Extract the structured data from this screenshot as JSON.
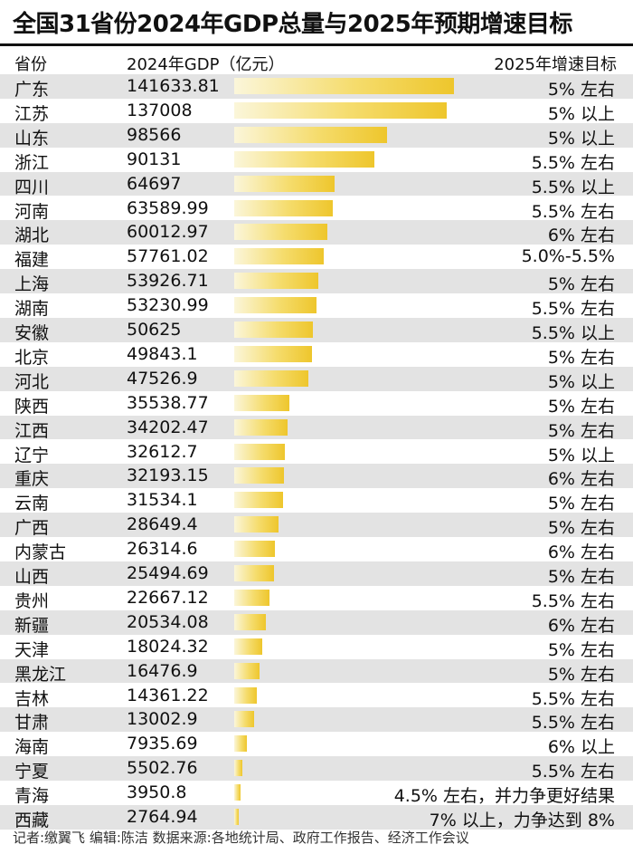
{
  "chart_data": {
    "type": "table",
    "title": "全国31省份2024年GDP总量与2025年预期增速目标",
    "columns": [
      "省份",
      "2024年GDP（亿元）",
      "2025年增速目标"
    ],
    "max_value": 141633.81,
    "rows": [
      {
        "province": "广东",
        "gdp": "141633.81",
        "value": 141633.81,
        "target": "5% 左右"
      },
      {
        "province": "江苏",
        "gdp": "137008",
        "value": 137008,
        "target": "5% 以上"
      },
      {
        "province": "山东",
        "gdp": "98566",
        "value": 98566,
        "target": "5% 以上"
      },
      {
        "province": "浙江",
        "gdp": "90131",
        "value": 90131,
        "target": "5.5% 左右"
      },
      {
        "province": "四川",
        "gdp": "64697",
        "value": 64697,
        "target": "5.5% 以上"
      },
      {
        "province": "河南",
        "gdp": "63589.99",
        "value": 63589.99,
        "target": "5.5% 左右"
      },
      {
        "province": "湖北",
        "gdp": "60012.97",
        "value": 60012.97,
        "target": "6% 左右"
      },
      {
        "province": "福建",
        "gdp": "57761.02",
        "value": 57761.02,
        "target": "5.0%-5.5%"
      },
      {
        "province": "上海",
        "gdp": "53926.71",
        "value": 53926.71,
        "target": "5% 左右"
      },
      {
        "province": "湖南",
        "gdp": "53230.99",
        "value": 53230.99,
        "target": "5.5% 左右"
      },
      {
        "province": "安徽",
        "gdp": "50625",
        "value": 50625,
        "target": "5.5% 以上"
      },
      {
        "province": "北京",
        "gdp": "49843.1",
        "value": 49843.1,
        "target": "5% 左右"
      },
      {
        "province": "河北",
        "gdp": "47526.9",
        "value": 47526.9,
        "target": "5% 以上"
      },
      {
        "province": "陕西",
        "gdp": "35538.77",
        "value": 35538.77,
        "target": "5% 左右"
      },
      {
        "province": "江西",
        "gdp": "34202.47",
        "value": 34202.47,
        "target": "5% 左右"
      },
      {
        "province": "辽宁",
        "gdp": "32612.7",
        "value": 32612.7,
        "target": "5% 以上"
      },
      {
        "province": "重庆",
        "gdp": "32193.15",
        "value": 32193.15,
        "target": "6% 左右"
      },
      {
        "province": "云南",
        "gdp": "31534.1",
        "value": 31534.1,
        "target": "5% 左右"
      },
      {
        "province": "广西",
        "gdp": "28649.4",
        "value": 28649.4,
        "target": "5% 左右"
      },
      {
        "province": "内蒙古",
        "gdp": "26314.6",
        "value": 26314.6,
        "target": "6% 左右"
      },
      {
        "province": "山西",
        "gdp": "25494.69",
        "value": 25494.69,
        "target": "5% 左右"
      },
      {
        "province": "贵州",
        "gdp": "22667.12",
        "value": 22667.12,
        "target": "5.5% 左右"
      },
      {
        "province": "新疆",
        "gdp": "20534.08",
        "value": 20534.08,
        "target": "6% 左右"
      },
      {
        "province": "天津",
        "gdp": "18024.32",
        "value": 18024.32,
        "target": "5% 左右"
      },
      {
        "province": "黑龙江",
        "gdp": "16476.9",
        "value": 16476.9,
        "target": "5% 左右"
      },
      {
        "province": "吉林",
        "gdp": "14361.22",
        "value": 14361.22,
        "target": "5.5% 左右"
      },
      {
        "province": "甘肃",
        "gdp": "13002.9",
        "value": 13002.9,
        "target": "5.5% 左右"
      },
      {
        "province": "海南",
        "gdp": "7935.69",
        "value": 7935.69,
        "target": "6% 以上"
      },
      {
        "province": "宁夏",
        "gdp": "5502.76",
        "value": 5502.76,
        "target": "5.5% 左右"
      },
      {
        "province": "青海",
        "gdp": "3950.8",
        "value": 3950.8,
        "target": "4.5% 左右，并力争更好结果"
      },
      {
        "province": "西藏",
        "gdp": "2764.94",
        "value": 2764.94,
        "target": "7% 以上，力争达到 8%"
      }
    ],
    "bar_color": "#eec62c",
    "footer": "记者:缴翼飞  编辑:陈洁  数据来源:各地统计局、政府工作报告、经济工作会议"
  }
}
